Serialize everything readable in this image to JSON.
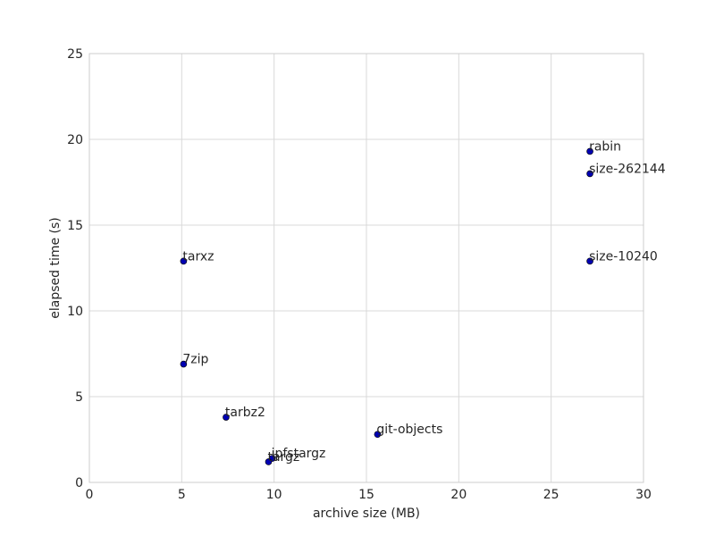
{
  "chart_data": {
    "type": "scatter",
    "xlabel": "archive size (MB)",
    "ylabel": "elapsed time (s)",
    "xlim": [
      0,
      30
    ],
    "ylim": [
      0,
      25
    ],
    "xticks": [
      "0",
      "5",
      "10",
      "15",
      "20",
      "25",
      "30"
    ],
    "yticks": [
      "0",
      "5",
      "10",
      "15",
      "20",
      "25"
    ],
    "grid": true,
    "marker_color": "#0000b3",
    "points": [
      {
        "label": "rabin",
        "x": 27.1,
        "y": 19.3
      },
      {
        "label": "size-262144",
        "x": 27.1,
        "y": 18.0
      },
      {
        "label": "size-10240",
        "x": 27.1,
        "y": 12.9
      },
      {
        "label": "tarxz",
        "x": 5.1,
        "y": 12.9
      },
      {
        "label": "7zip",
        "x": 5.1,
        "y": 6.9
      },
      {
        "label": "tarbz2",
        "x": 7.4,
        "y": 3.8
      },
      {
        "label": "git-objects",
        "x": 15.6,
        "y": 2.8
      },
      {
        "label": "ipfstargz",
        "x": 9.9,
        "y": 1.4
      },
      {
        "label": "targz",
        "x": 9.7,
        "y": 1.2
      }
    ]
  }
}
